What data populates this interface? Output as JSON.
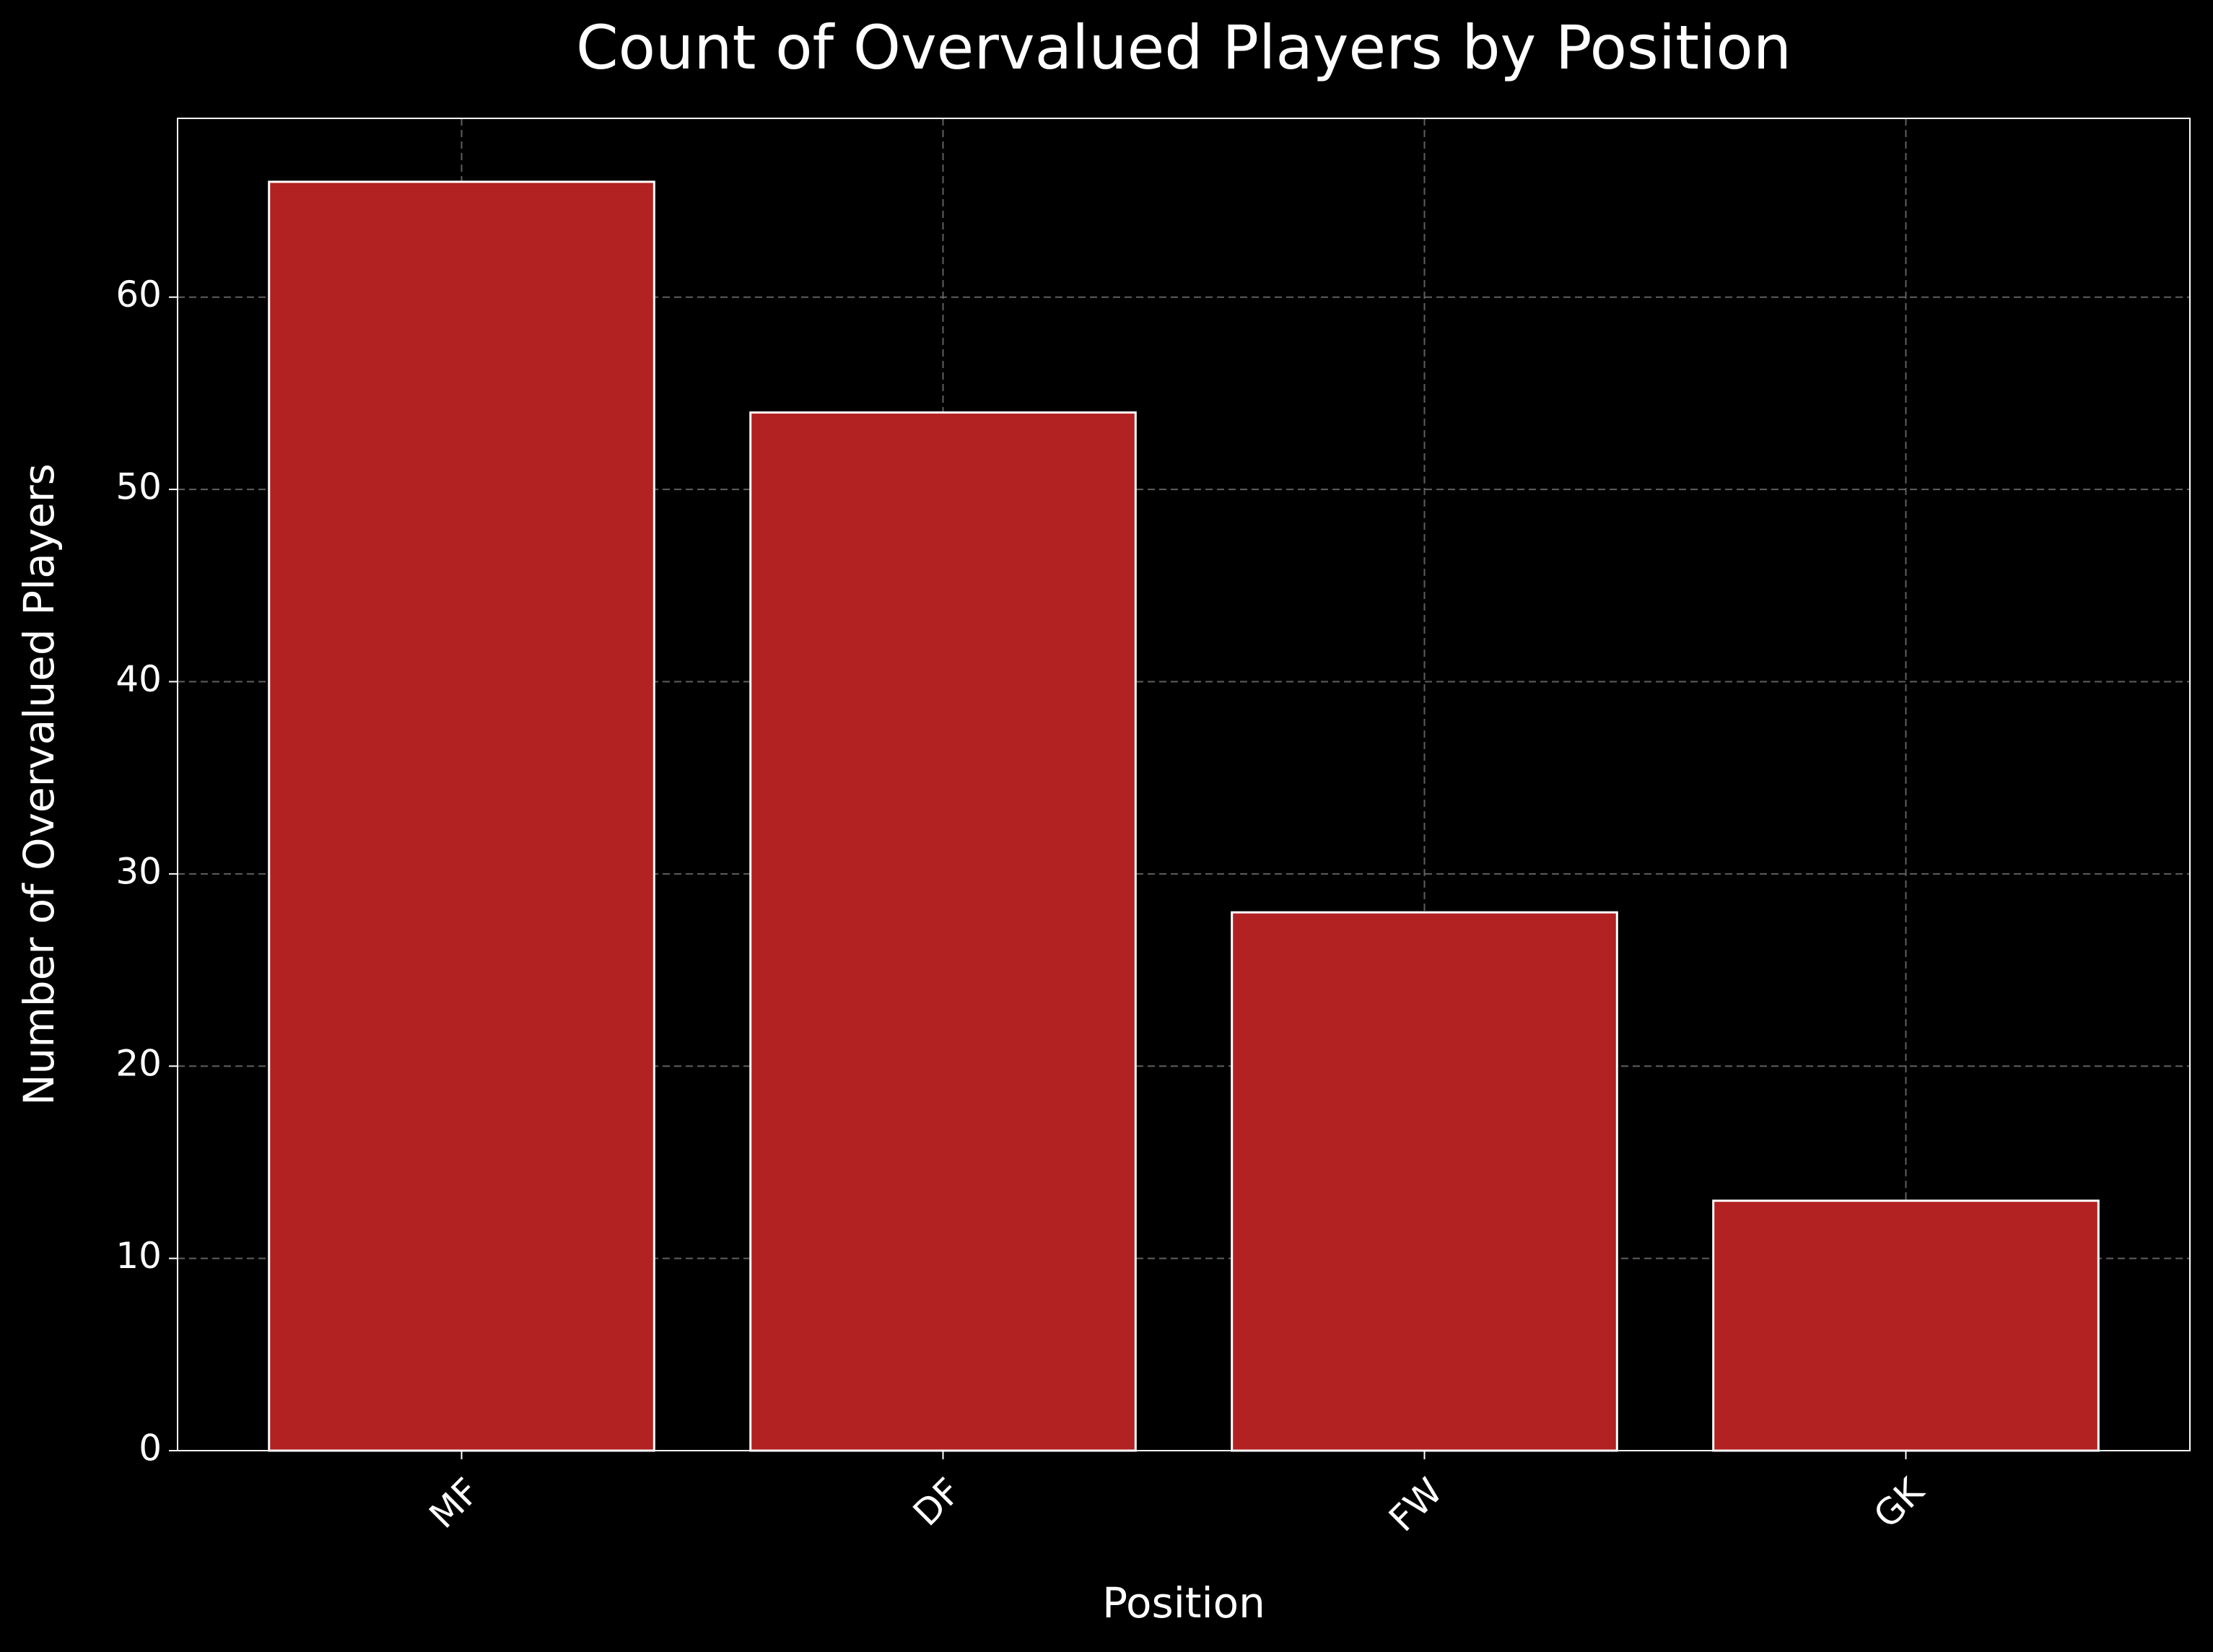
{
  "chart_data": {
    "type": "bar",
    "title": "Count of Overvalued Players by Position",
    "x_label": "Position",
    "y_label": "Number of Overvalued Players",
    "categories": [
      "MF",
      "DF",
      "FW",
      "GK"
    ],
    "values": [
      66,
      54,
      28,
      13
    ],
    "color": "#b22222",
    "ylim": [
      0,
      69.3
    ],
    "yticks": [
      0,
      10,
      20,
      30,
      40,
      50,
      60
    ],
    "grid": true
  }
}
